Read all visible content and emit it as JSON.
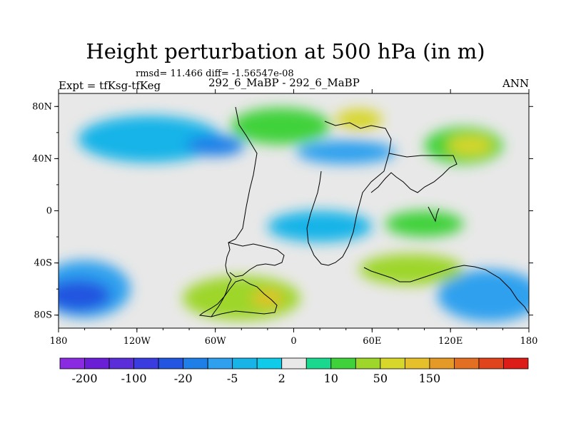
{
  "title": "Height perturbation at 500 hPa (in m)",
  "stats": "rmsd= 11.466 diff= -1.56547e-08",
  "left_label": "Expt = tfKsg-tfKeg",
  "center_label": "292_6_MaBP - 292_6_MaBP",
  "right_label": "ANN",
  "chart_data": {
    "type": "heatmap",
    "map_projection": "cylindrical equidistant",
    "lon_range": [
      -180,
      180
    ],
    "lat_range": [
      -90,
      90
    ],
    "lat_ticks": [
      {
        "value": 80,
        "label": "80N"
      },
      {
        "value": 40,
        "label": "40N"
      },
      {
        "value": 0,
        "label": "0"
      },
      {
        "value": -40,
        "label": "40S"
      },
      {
        "value": -80,
        "label": "80S"
      }
    ],
    "lon_ticks": [
      {
        "value": -180,
        "label": "180"
      },
      {
        "value": -120,
        "label": "120W"
      },
      {
        "value": -60,
        "label": "60W"
      },
      {
        "value": 0,
        "label": "0"
      },
      {
        "value": 60,
        "label": "60E"
      },
      {
        "value": 120,
        "label": "120E"
      },
      {
        "value": 180,
        "label": "180"
      }
    ],
    "colorbar": {
      "colors": [
        "#8a2be2",
        "#6a1fd6",
        "#5a2dd8",
        "#3a3ce0",
        "#2255e0",
        "#1e7fe8",
        "#2fa0ee",
        "#18b4e8",
        "#0ecbea",
        "#e8e8e8",
        "#1ad98e",
        "#3fd23a",
        "#9ed62a",
        "#d7d62a",
        "#e6c02a",
        "#e59a28",
        "#e36f22",
        "#e0441c",
        "#dd1c18"
      ],
      "labels": [
        {
          "boundary": 1,
          "text": "-200"
        },
        {
          "boundary": 3,
          "text": "-100"
        },
        {
          "boundary": 5,
          "text": "-20"
        },
        {
          "boundary": 7,
          "text": "-5"
        },
        {
          "boundary": 9,
          "text": "2"
        },
        {
          "boundary": 11,
          "text": "10"
        },
        {
          "boundary": 13,
          "text": "50"
        },
        {
          "boundary": 15,
          "text": "150"
        }
      ]
    },
    "regions": [
      {
        "name": "north-atlantic-positive",
        "lon": -10,
        "lat": 65,
        "rlon": 38,
        "rlat": 14,
        "level": 11
      },
      {
        "name": "north-atlantic-core",
        "lon": 50,
        "lat": 70,
        "rlon": 18,
        "rlat": 8,
        "level": 13
      },
      {
        "name": "north-pacific-positive",
        "lon": 130,
        "lat": 50,
        "rlon": 30,
        "rlat": 14,
        "level": 11
      },
      {
        "name": "north-pacific-core",
        "lon": 135,
        "lat": 50,
        "rlon": 18,
        "rlat": 8,
        "level": 13
      },
      {
        "name": "north-america-negative",
        "lon": -110,
        "lat": 55,
        "rlon": 55,
        "rlat": 18,
        "level": 7
      },
      {
        "name": "north-america-core",
        "lon": -60,
        "lat": 50,
        "rlon": 22,
        "rlat": 8,
        "level": 5
      },
      {
        "name": "eurasia-negative",
        "lon": 40,
        "lat": 45,
        "rlon": 38,
        "rlat": 9,
        "level": 6
      },
      {
        "name": "southern-pacific-negative",
        "lon": -160,
        "lat": -60,
        "rlon": 35,
        "rlat": 22,
        "level": 6
      },
      {
        "name": "southern-pacific-core",
        "lon": -165,
        "lat": -65,
        "rlon": 25,
        "rlat": 12,
        "level": 4
      },
      {
        "name": "southern-indian-negative",
        "lon": 150,
        "lat": -65,
        "rlon": 40,
        "rlat": 20,
        "level": 6
      },
      {
        "name": "southern-atlantic-positive",
        "lon": -40,
        "lat": -67,
        "rlon": 45,
        "rlat": 17,
        "level": 12
      },
      {
        "name": "southern-atlantic-core",
        "lon": -20,
        "lat": -67,
        "rlon": 12,
        "rlat": 6,
        "level": 14
      },
      {
        "name": "southern-indian-positive",
        "lon": 90,
        "lat": -45,
        "rlon": 40,
        "rlat": 12,
        "level": 12
      },
      {
        "name": "tropical-east-negative",
        "lon": 20,
        "lat": -12,
        "rlon": 40,
        "rlat": 12,
        "level": 7
      },
      {
        "name": "tropical-east-positive",
        "lon": 100,
        "lat": -10,
        "rlon": 30,
        "rlat": 10,
        "level": 11
      }
    ]
  }
}
